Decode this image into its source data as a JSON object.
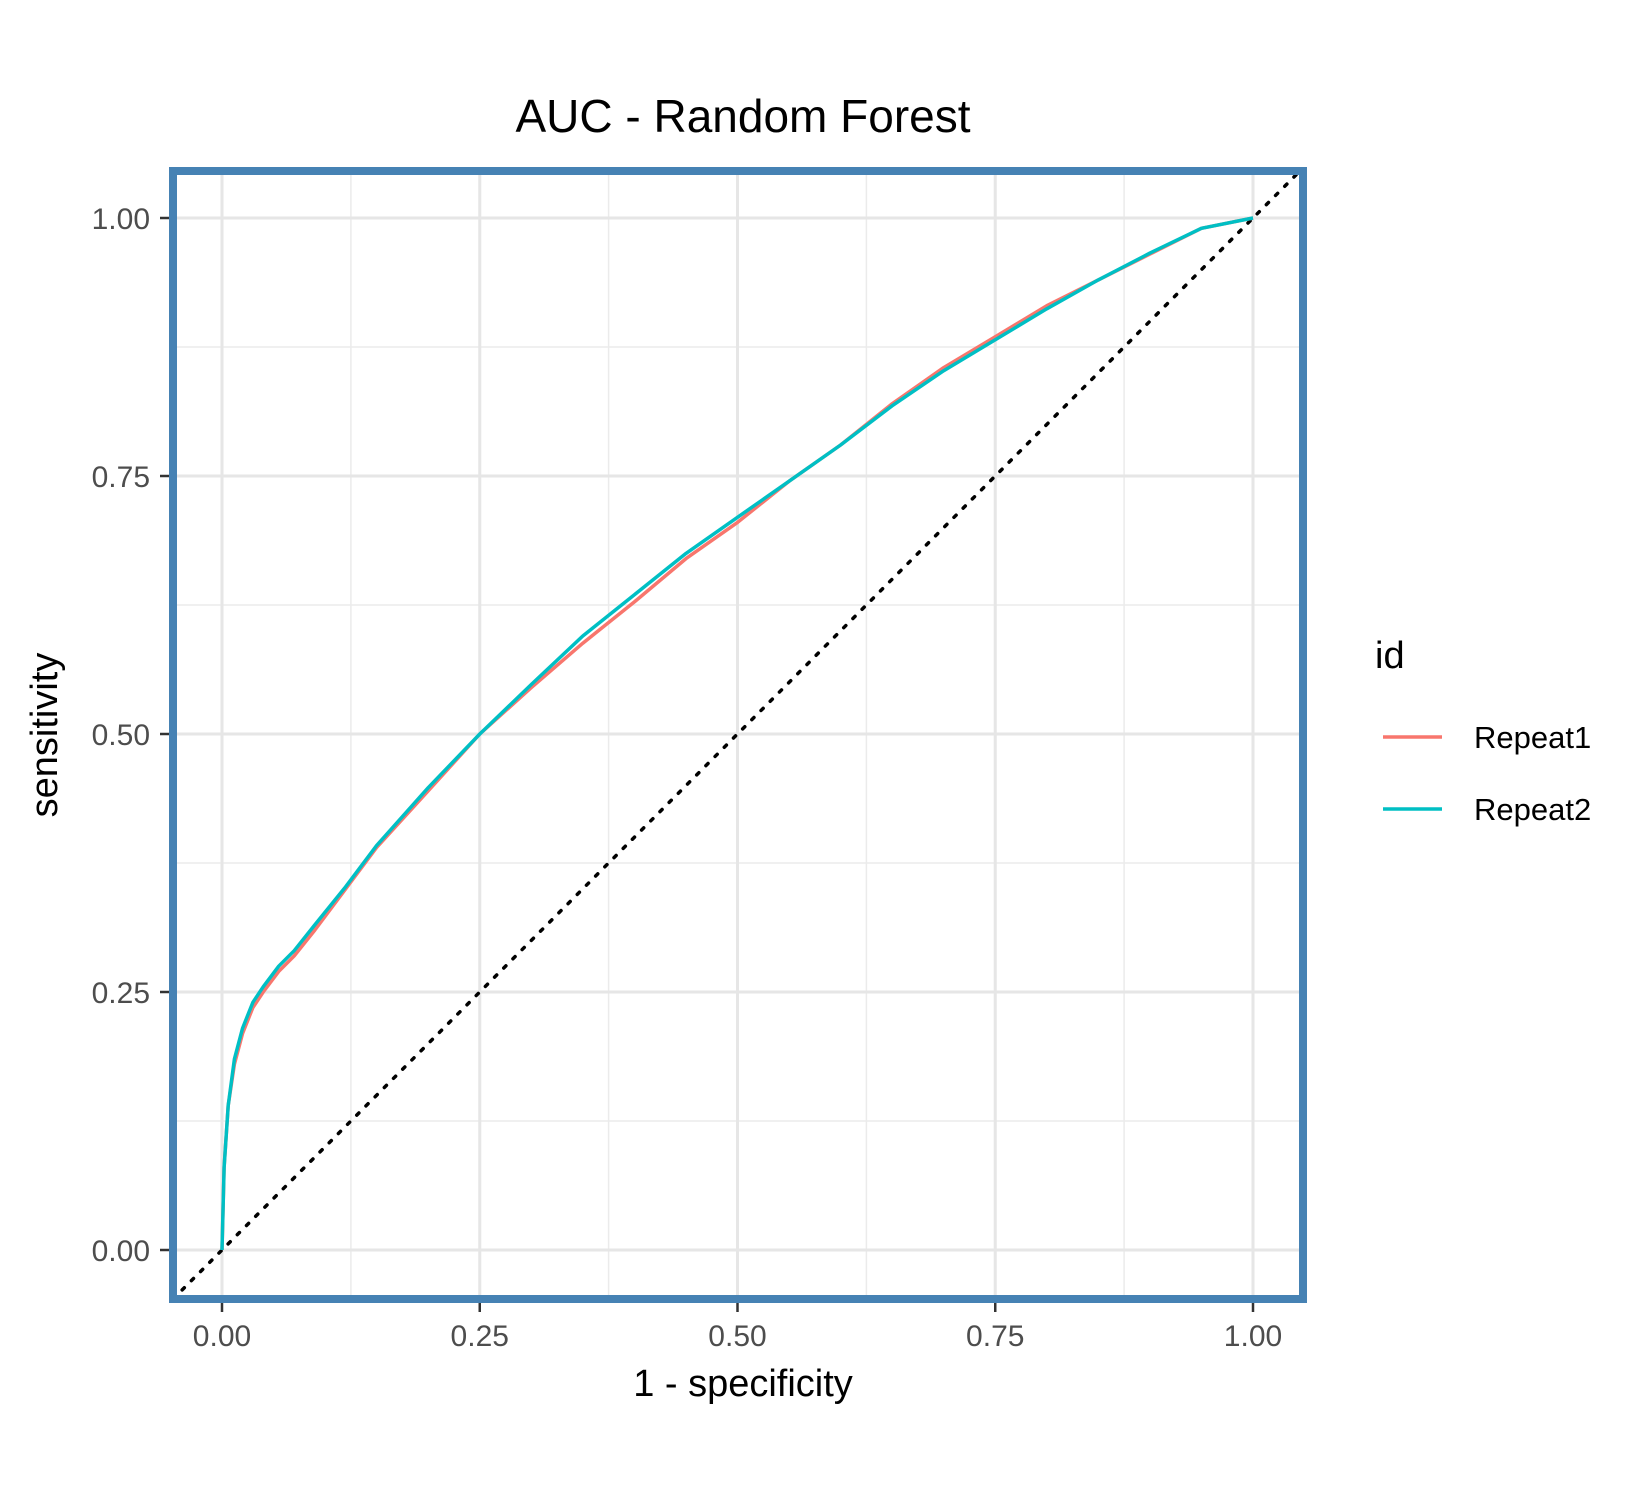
{
  "chart_data": {
    "type": "line",
    "title": "AUC - Random Forest",
    "xlabel": "1 - specificity",
    "ylabel": "sensitivity",
    "xlim": [
      0,
      1
    ],
    "ylim": [
      0,
      1
    ],
    "x_ticks": [
      "0.00",
      "0.25",
      "0.50",
      "0.75",
      "1.00"
    ],
    "y_ticks": [
      "0.00",
      "0.25",
      "0.50",
      "0.75",
      "1.00"
    ],
    "grid": true,
    "panel_border_color": "#4682b4",
    "legend": {
      "title": "id",
      "position": "right"
    },
    "reference_line": {
      "style": "dotted",
      "from": [
        0,
        0
      ],
      "to": [
        1,
        1
      ]
    },
    "series": [
      {
        "name": "Repeat1",
        "color": "#f8766d",
        "points": [
          [
            0,
            0
          ],
          [
            0.002,
            0.08
          ],
          [
            0.006,
            0.14
          ],
          [
            0.012,
            0.18
          ],
          [
            0.02,
            0.21
          ],
          [
            0.03,
            0.235
          ],
          [
            0.04,
            0.25
          ],
          [
            0.055,
            0.27
          ],
          [
            0.07,
            0.285
          ],
          [
            0.09,
            0.31
          ],
          [
            0.12,
            0.35
          ],
          [
            0.15,
            0.39
          ],
          [
            0.2,
            0.445
          ],
          [
            0.25,
            0.5
          ],
          [
            0.3,
            0.545
          ],
          [
            0.35,
            0.588
          ],
          [
            0.4,
            0.628
          ],
          [
            0.45,
            0.67
          ],
          [
            0.5,
            0.705
          ],
          [
            0.55,
            0.745
          ],
          [
            0.6,
            0.78
          ],
          [
            0.65,
            0.82
          ],
          [
            0.7,
            0.855
          ],
          [
            0.75,
            0.885
          ],
          [
            0.8,
            0.915
          ],
          [
            0.85,
            0.94
          ],
          [
            0.9,
            0.965
          ],
          [
            0.95,
            0.99
          ],
          [
            1,
            1
          ]
        ]
      },
      {
        "name": "Repeat2",
        "color": "#00bfc4",
        "points": [
          [
            0,
            0
          ],
          [
            0.002,
            0.08
          ],
          [
            0.006,
            0.14
          ],
          [
            0.012,
            0.185
          ],
          [
            0.02,
            0.215
          ],
          [
            0.03,
            0.24
          ],
          [
            0.04,
            0.255
          ],
          [
            0.055,
            0.275
          ],
          [
            0.07,
            0.29
          ],
          [
            0.09,
            0.315
          ],
          [
            0.12,
            0.352
          ],
          [
            0.15,
            0.392
          ],
          [
            0.2,
            0.448
          ],
          [
            0.25,
            0.5
          ],
          [
            0.3,
            0.548
          ],
          [
            0.35,
            0.595
          ],
          [
            0.4,
            0.635
          ],
          [
            0.45,
            0.675
          ],
          [
            0.5,
            0.71
          ],
          [
            0.55,
            0.745
          ],
          [
            0.6,
            0.78
          ],
          [
            0.65,
            0.818
          ],
          [
            0.7,
            0.852
          ],
          [
            0.75,
            0.882
          ],
          [
            0.8,
            0.912
          ],
          [
            0.85,
            0.94
          ],
          [
            0.9,
            0.966
          ],
          [
            0.95,
            0.99
          ],
          [
            1,
            1
          ]
        ]
      }
    ]
  }
}
